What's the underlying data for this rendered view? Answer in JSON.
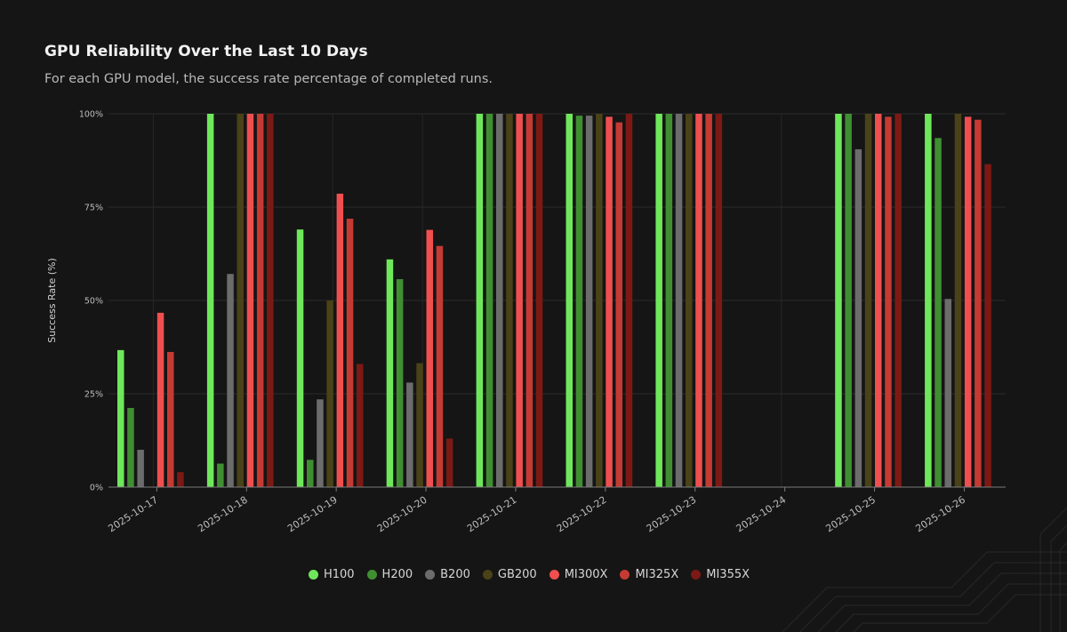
{
  "header": {
    "title": "GPU Reliability Over the Last 10 Days",
    "subtitle": "For each GPU model, the success rate percentage of completed runs."
  },
  "chart_data": {
    "type": "bar",
    "title": "GPU Reliability Over the Last 10 Days",
    "xlabel": "",
    "ylabel": "Success Rate (%)",
    "ylim": [
      0,
      100
    ],
    "yticks": [
      0,
      25,
      50,
      75,
      100
    ],
    "ytick_labels": [
      "0%",
      "25%",
      "50%",
      "75%",
      "100%"
    ],
    "grid": true,
    "legend_position": "bottom-center",
    "categories": [
      "2025-10-17",
      "2025-10-18",
      "2025-10-19",
      "2025-10-20",
      "2025-10-21",
      "2025-10-22",
      "2025-10-23",
      "2025-10-24",
      "2025-10-25",
      "2025-10-26"
    ],
    "series": [
      {
        "name": "H100",
        "color": "#6ee85a",
        "values": [
          36.7,
          100,
          69,
          61,
          100,
          100,
          100,
          null,
          100,
          100
        ]
      },
      {
        "name": "H200",
        "color": "#3f8f32",
        "values": [
          21.2,
          6.3,
          7.3,
          55.7,
          100,
          99.5,
          100,
          null,
          100,
          93.5
        ]
      },
      {
        "name": "B200",
        "color": "#6c6c6c",
        "values": [
          10,
          57.1,
          23.5,
          28.0,
          100,
          99.5,
          100,
          null,
          90.5,
          50.4
        ]
      },
      {
        "name": "GB200",
        "color": "#4a4218",
        "values": [
          null,
          100,
          50,
          33.2,
          100,
          100,
          100,
          null,
          100,
          100
        ]
      },
      {
        "name": "MI300X",
        "color": "#ef4f4f",
        "values": [
          46.7,
          100,
          78.6,
          68.9,
          100,
          99.2,
          100,
          null,
          100,
          99.2
        ]
      },
      {
        "name": "MI325X",
        "color": "#c53a33",
        "values": [
          36.2,
          100,
          71.9,
          64.6,
          100,
          97.7,
          100,
          null,
          99.2,
          98.4
        ]
      },
      {
        "name": "MI355X",
        "color": "#7c1915",
        "values": [
          4.0,
          100,
          33.0,
          13.0,
          100,
          100,
          100,
          null,
          100,
          86.5
        ]
      }
    ]
  }
}
